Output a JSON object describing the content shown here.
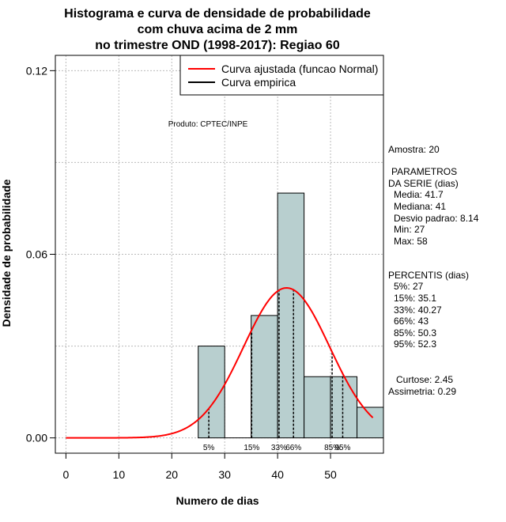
{
  "chart_data": {
    "type": "bar",
    "title_lines": [
      "Histograma e curva de densidade de probabilidade",
      "com chuva acima de 2 mm",
      "no trimestre OND (1998-2017): Regiao 60"
    ],
    "xlabel": "Numero de dias",
    "ylabel": "Densidade de probabilidade",
    "xlim": [
      -2,
      60
    ],
    "ylim": [
      -0.005,
      0.125
    ],
    "x_ticks": [
      0,
      10,
      20,
      30,
      40,
      50
    ],
    "y_ticks": [
      0.0,
      0.06,
      0.12
    ],
    "y_tick_labels": [
      "0.00",
      "0.06",
      "0.12"
    ],
    "grid": true,
    "bins": [
      {
        "start": 25,
        "end": 30,
        "density": 0.03
      },
      {
        "start": 30,
        "end": 35,
        "density": 0.0
      },
      {
        "start": 35,
        "end": 40,
        "density": 0.04
      },
      {
        "start": 40,
        "end": 45,
        "density": 0.08
      },
      {
        "start": 45,
        "end": 50,
        "density": 0.02
      },
      {
        "start": 50,
        "end": 55,
        "density": 0.02
      },
      {
        "start": 55,
        "end": 60,
        "density": 0.01
      }
    ],
    "bar_color": "#b8cfcf",
    "normal_curve": {
      "name": "Curva ajustada (funcao Normal)",
      "mean": 41.7,
      "sd": 8.14,
      "x_range": [
        0,
        58
      ],
      "color": "#ff0000"
    },
    "empirical_curve": {
      "name": "Curva empirica",
      "color": "#000000"
    },
    "percentiles": [
      {
        "label": "5%",
        "value": 27
      },
      {
        "label": "15%",
        "value": 35.1
      },
      {
        "label": "33%",
        "value": 40.27
      },
      {
        "label": "66%",
        "value": 43
      },
      {
        "label": "85%",
        "value": 50.3
      },
      {
        "label": "95%",
        "value": 52.3
      }
    ],
    "legend_position": "top-right",
    "annotation": "Produto: CPTEC/INPE"
  },
  "side_panel": {
    "sample": "Amostra: 20",
    "params_header_1": "PARAMETROS",
    "params_header_2": "DA SERIE (dias)",
    "media": "Media: 41.7",
    "mediana": "Mediana: 41",
    "desvio": "Desvio padrao: 8.14",
    "min": "Min: 27",
    "max": "Max: 58",
    "percentis_header": "PERCENTIS (dias)",
    "p5": "5%: 27",
    "p15": "15%: 35.1",
    "p33": "33%: 40.27",
    "p66": "66%: 43",
    "p85": "85%: 50.3",
    "p95": "95%: 52.3",
    "curtose": "Curtose: 2.45",
    "assimetria": "Assimetria: 0.29"
  }
}
